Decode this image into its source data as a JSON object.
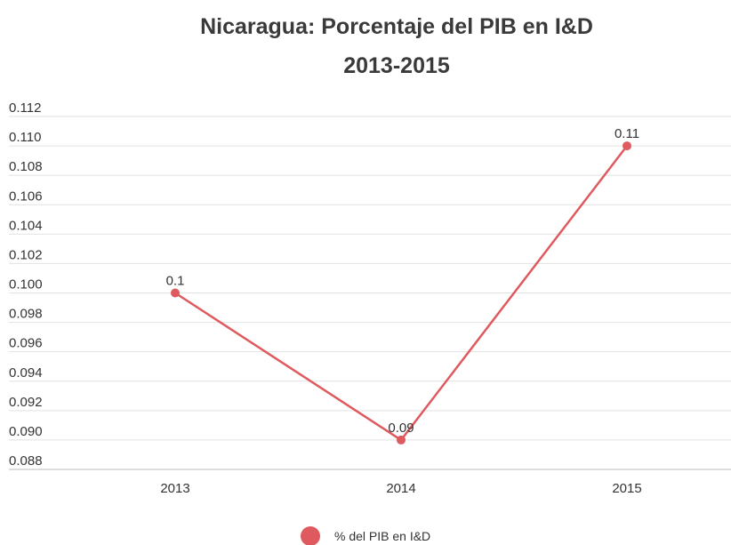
{
  "chart_data": {
    "type": "line",
    "title": "Nicaragua: Porcentaje del PIB en I&D",
    "subtitle": "2013-2015",
    "categories": [
      "2013",
      "2014",
      "2015"
    ],
    "series": [
      {
        "name": "% del PIB en I&D",
        "color": "#df5a5e",
        "values": [
          0.1,
          0.09,
          0.11
        ]
      }
    ],
    "ylim": [
      0.088,
      0.112
    ],
    "yticks": [
      0.088,
      {
        "value": 0.09,
        "label": "0.090"
      },
      0.092,
      0.094,
      0.096,
      0.098,
      {
        "value": 0.1,
        "label": "0.100"
      },
      0.102,
      0.104,
      0.106,
      0.108,
      {
        "value": 0.11,
        "label": "0.110"
      },
      0.112
    ],
    "grid": true,
    "legend": "bottom"
  }
}
